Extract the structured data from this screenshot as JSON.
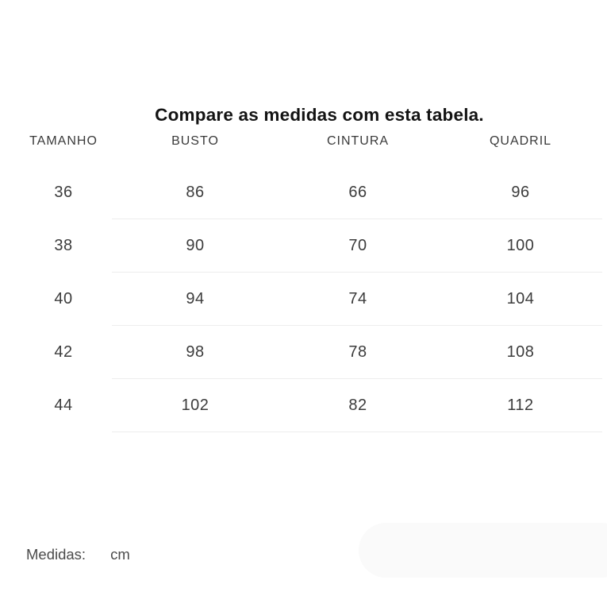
{
  "title": "Compare as medidas com esta tabela.",
  "table": {
    "headers": [
      "TAMANHO",
      "BUSTO",
      "CINTURA",
      "QUADRIL"
    ],
    "rows": [
      [
        "36",
        "86",
        "66",
        "96"
      ],
      [
        "38",
        "90",
        "70",
        "100"
      ],
      [
        "40",
        "94",
        "74",
        "104"
      ],
      [
        "42",
        "98",
        "78",
        "108"
      ],
      [
        "44",
        "102",
        "82",
        "112"
      ]
    ]
  },
  "footer": {
    "label": "Medidas:",
    "unit": "cm"
  },
  "colors": {
    "background": "#ffffff",
    "title_text": "#131313",
    "header_text": "#3a3a3a",
    "cell_text": "#3c3c3c",
    "footer_text": "#4b4b4b",
    "divider": "#ededed",
    "pill": "#fafafa"
  }
}
